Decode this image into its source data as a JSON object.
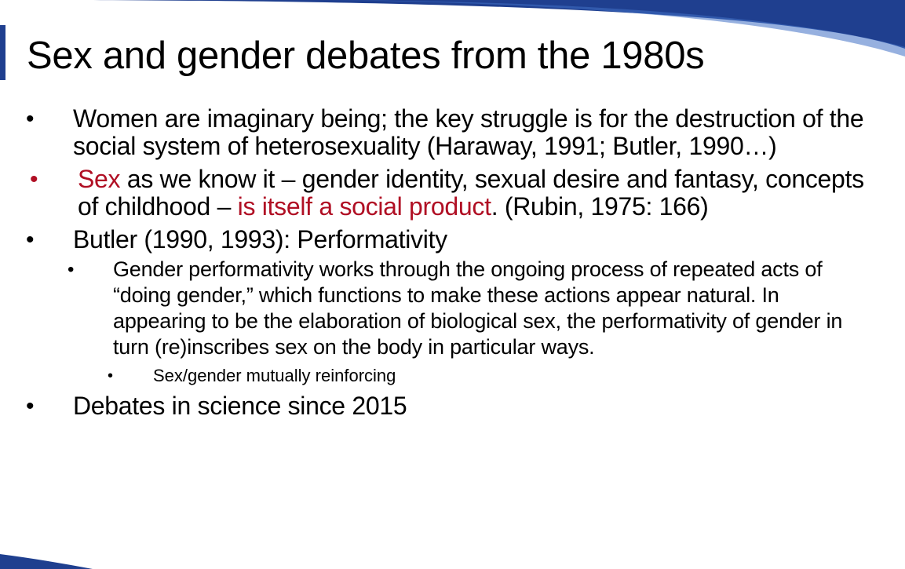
{
  "slide": {
    "title": "Sex and gender debates from the 1980s",
    "bullet_symbol": "•",
    "accent_color": "#b00f24",
    "brand_color": "#1f3f8f",
    "items": [
      {
        "text": "Women are imaginary being; the key struggle is for the destruction of the social system of heterosexuality (Haraway, 1991; Butler, 1990…)"
      },
      {
        "text_red_1": "Sex",
        "text_2": " as we know it – gender identity, sexual desire and fantasy, concepts of childhood – ",
        "text_red_3": "is itself a social product",
        "text_4": ". (Rubin, 1975: 166)"
      },
      {
        "text": "Butler (1990, 1993): Performativity",
        "sub": {
          "text": "Gender performativity works through the ongoing process of repeated acts of “doing gender,” which functions to make these actions appear natural. In appearing to be the elaboration of biological sex, the performativity of gender in turn (re)inscribes sex on the body in particular ways.",
          "subsub": {
            "text": "Sex/gender mutually reinforcing"
          }
        }
      },
      {
        "text": "Debates in science since 2015"
      }
    ]
  }
}
